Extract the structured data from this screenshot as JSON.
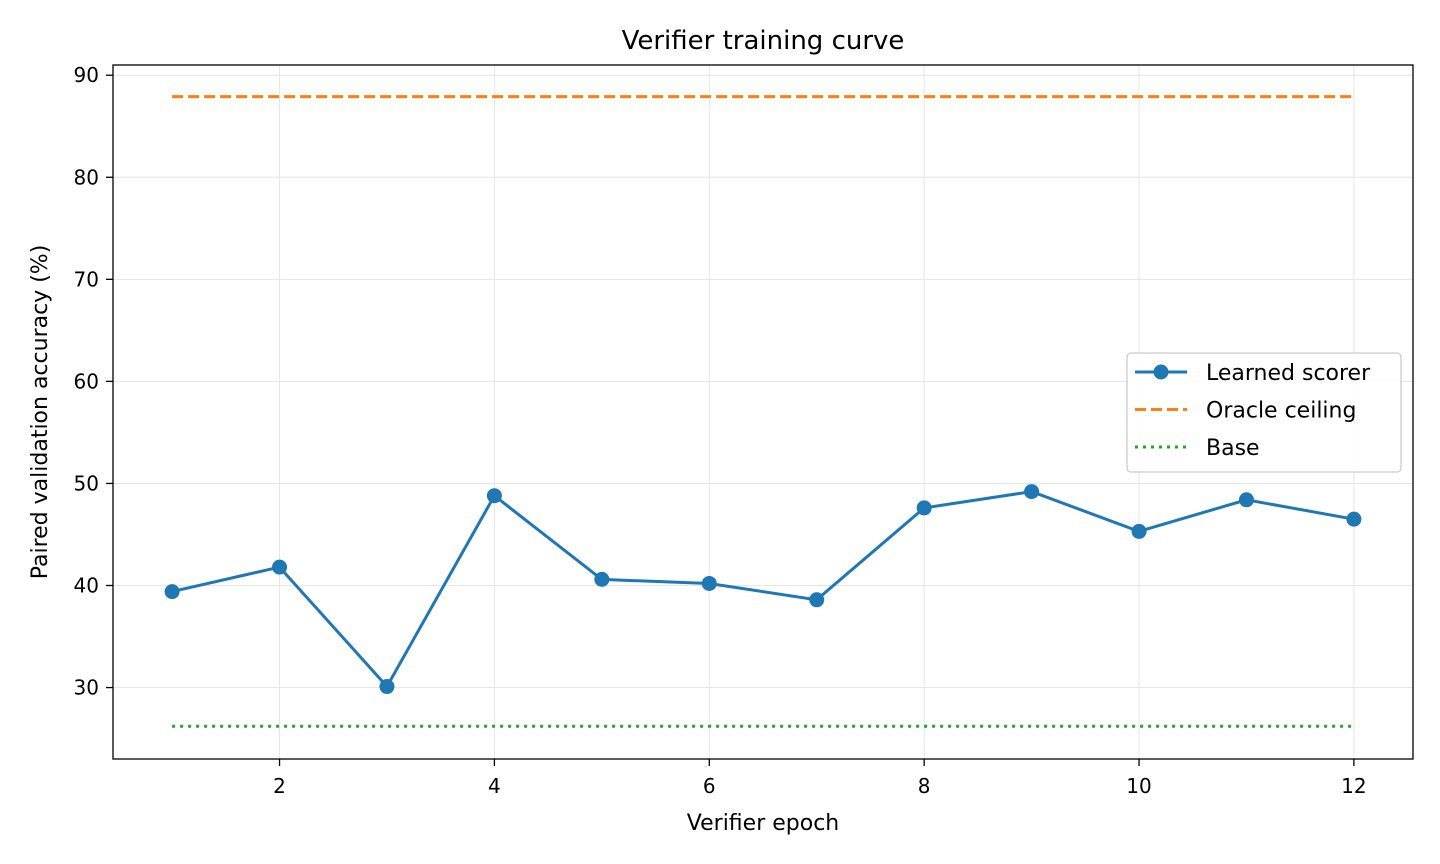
{
  "chart_data": {
    "type": "line",
    "title": "Verifier training curve",
    "xlabel": "Verifier epoch",
    "ylabel": "Paired validation accuracy (%)",
    "xlim": [
      0.45,
      12.55
    ],
    "ylim": [
      23,
      91
    ],
    "xticks": [
      2,
      4,
      6,
      8,
      10,
      12
    ],
    "yticks": [
      30,
      40,
      50,
      60,
      70,
      80,
      90
    ],
    "grid": true,
    "legend_position": "center-right",
    "series": [
      {
        "name": "Learned scorer",
        "style": "solid-markers",
        "color": "#1f77b4",
        "x": [
          1,
          2,
          3,
          4,
          5,
          6,
          7,
          8,
          9,
          10,
          11,
          12
        ],
        "y": [
          39.4,
          41.8,
          30.1,
          48.8,
          40.6,
          40.2,
          38.6,
          47.6,
          49.2,
          45.3,
          48.4,
          46.5
        ]
      },
      {
        "name": "Oracle ceiling",
        "style": "dashed",
        "color": "#ff7f0e",
        "x": [
          1,
          12
        ],
        "y": [
          87.9,
          87.9
        ]
      },
      {
        "name": "Base",
        "style": "dotted",
        "color": "#2ca02c",
        "x": [
          1,
          12
        ],
        "y": [
          26.2,
          26.2
        ]
      }
    ]
  }
}
